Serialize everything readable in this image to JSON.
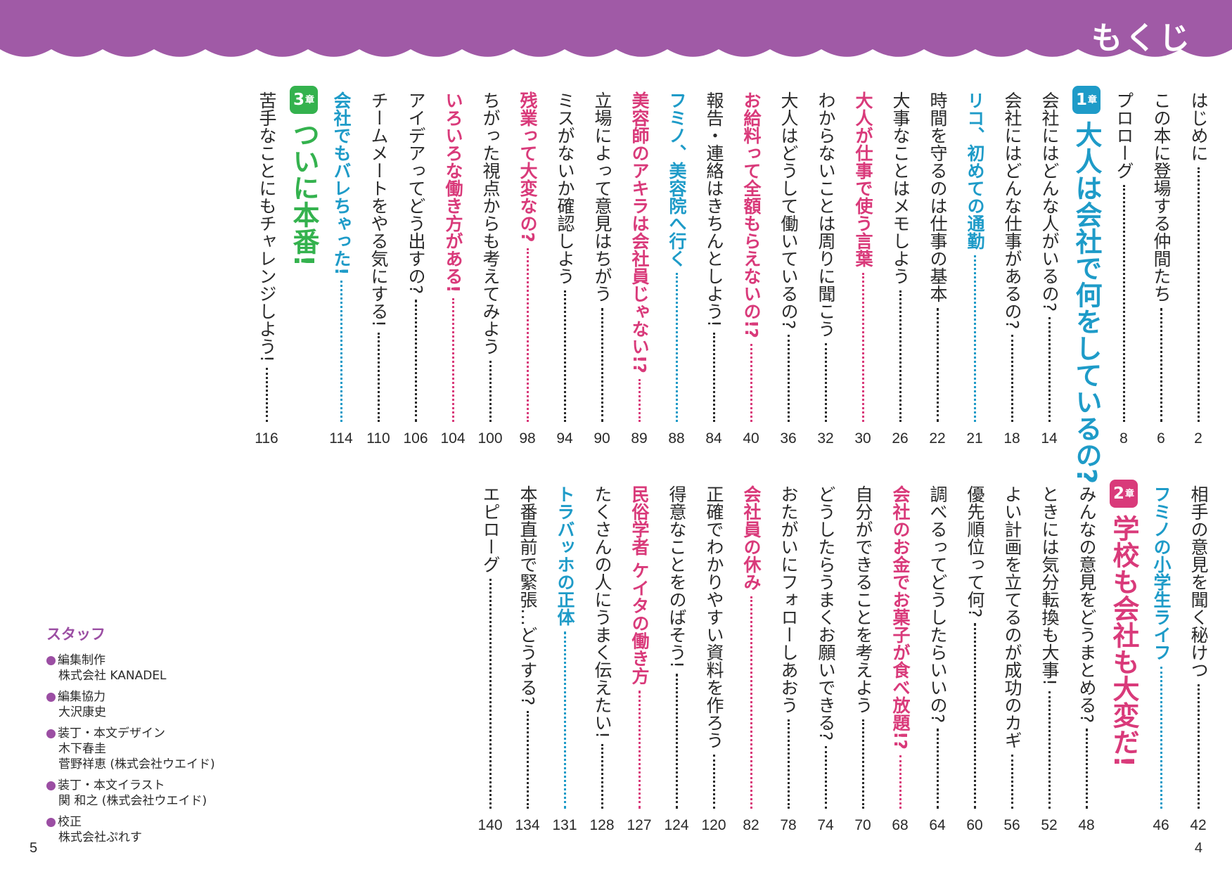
{
  "header": {
    "title": "もくじ",
    "banner_color": "#a05aa6"
  },
  "colors": {
    "default": "#2a2a2a",
    "blue": "#1e9bc8",
    "pink": "#d93a7a",
    "green": "#34b24e",
    "purple": "#9b4ea3"
  },
  "toc_top": [
    {
      "text": "はじめに",
      "page": "2",
      "color": "default"
    },
    {
      "text": "この本に登場する仲間たち",
      "page": "6",
      "color": "default"
    },
    {
      "text": "プロローグ",
      "page": "8",
      "color": "default"
    },
    {
      "chapter_no": "1",
      "chapter_suffix": "章",
      "title": "大人は会社で何をしているの?",
      "color": "blue"
    },
    {
      "text": "会社にはどんな人がいるの?",
      "page": "14",
      "color": "default"
    },
    {
      "text": "会社にはどんな仕事があるの?",
      "page": "18",
      "color": "default"
    },
    {
      "text": "リコ、初めての通勤",
      "page": "21",
      "color": "blue"
    },
    {
      "text": "時間を守るのは仕事の基本",
      "page": "22",
      "color": "default"
    },
    {
      "text": "大事なことはメモしよう",
      "page": "26",
      "color": "default"
    },
    {
      "text": "大人が仕事で使う言葉",
      "page": "30",
      "color": "pink"
    },
    {
      "text": "わからないことは周りに聞こう",
      "page": "32",
      "color": "default"
    },
    {
      "text": "大人はどうして働いているの?",
      "page": "36",
      "color": "default"
    },
    {
      "text": "お給料って全額もらえないの!?",
      "page": "40",
      "color": "pink"
    },
    {
      "text": "報告・連絡はきちんとしよう!",
      "page": "84",
      "color": "default"
    },
    {
      "text": "フミノ、美容院へ行く",
      "page": "88",
      "color": "blue"
    },
    {
      "text": "美容師のアキラは会社員じゃない!?",
      "page": "89",
      "color": "pink"
    },
    {
      "text": "立場によって意見はちがう",
      "page": "90",
      "color": "default"
    },
    {
      "text": "ミスがないか確認しよう",
      "page": "94",
      "color": "default"
    },
    {
      "text": "残業って大変なの?",
      "page": "98",
      "color": "pink"
    },
    {
      "text": "ちがった視点からも考えてみよう",
      "page": "100",
      "color": "default"
    },
    {
      "text": "いろいろな働き方がある!",
      "page": "104",
      "color": "pink"
    },
    {
      "text": "アイデアってどう出すの?",
      "page": "106",
      "color": "default"
    },
    {
      "text": "チームメートをやる気にする!",
      "page": "110",
      "color": "default"
    },
    {
      "text": "会社でもバレちゃった!",
      "page": "114",
      "color": "blue"
    },
    {
      "chapter_no": "3",
      "chapter_suffix": "章",
      "title": "ついに本番!",
      "color": "green"
    },
    {
      "text": "苦手なことにもチャレンジしよう!",
      "page": "116",
      "color": "default"
    }
  ],
  "toc_bottom": [
    {
      "text": "相手の意見を聞く秘けつ",
      "page": "42",
      "color": "default"
    },
    {
      "text": "フミノの小学生ライフ",
      "page": "46",
      "color": "blue"
    },
    {
      "chapter_no": "2",
      "chapter_suffix": "章",
      "title": "学校も会社も大変だ!",
      "color": "pink"
    },
    {
      "text": "みんなの意見をどうまとめる?",
      "page": "48",
      "color": "default"
    },
    {
      "text": "ときには気分転換も大事!",
      "page": "52",
      "color": "default"
    },
    {
      "text": "よい計画を立てるのが成功のカギ",
      "page": "56",
      "color": "default"
    },
    {
      "text": "優先順位って何?",
      "page": "60",
      "color": "default"
    },
    {
      "text": "調べるってどうしたらいいの?",
      "page": "64",
      "color": "default"
    },
    {
      "text": "会社のお金でお菓子が食べ放題!?",
      "page": "68",
      "color": "pink"
    },
    {
      "text": "自分ができることを考えよう",
      "page": "70",
      "color": "default"
    },
    {
      "text": "どうしたらうまくお願いできる?",
      "page": "74",
      "color": "default"
    },
    {
      "text": "おたがいにフォローしあおう",
      "page": "78",
      "color": "default"
    },
    {
      "text": "会社員の休み",
      "page": "82",
      "color": "pink"
    },
    {
      "text": "正確でわかりやすい資料を作ろう",
      "page": "120",
      "color": "default"
    },
    {
      "text": "得意なことをのばそう!",
      "page": "124",
      "color": "default"
    },
    {
      "text": "民俗学者 ケイタの働き方",
      "page": "127",
      "color": "pink"
    },
    {
      "text": "たくさんの人にうまく伝えたい!",
      "page": "128",
      "color": "default"
    },
    {
      "text": "トラバッホの正体",
      "page": "131",
      "color": "blue"
    },
    {
      "text": "本番直前で緊張…どうする?",
      "page": "134",
      "color": "default"
    },
    {
      "text": "エピローグ",
      "page": "140",
      "color": "default"
    }
  ],
  "staff": {
    "title": "スタッフ",
    "items": [
      {
        "role": "編集制作",
        "names": [
          "株式会社 KANADEL"
        ]
      },
      {
        "role": "編集協力",
        "names": [
          "大沢康史"
        ]
      },
      {
        "role": "装丁・本文デザイン",
        "names": [
          "木下春圭",
          "菅野祥恵 (株式会社ウエイド)"
        ]
      },
      {
        "role": "装丁・本文イラスト",
        "names": [
          "関 和之 (株式会社ウエイド)"
        ]
      },
      {
        "role": "校正",
        "names": [
          "株式会社ぷれす"
        ]
      }
    ]
  },
  "page_numbers": {
    "left": "5",
    "right": "4"
  }
}
